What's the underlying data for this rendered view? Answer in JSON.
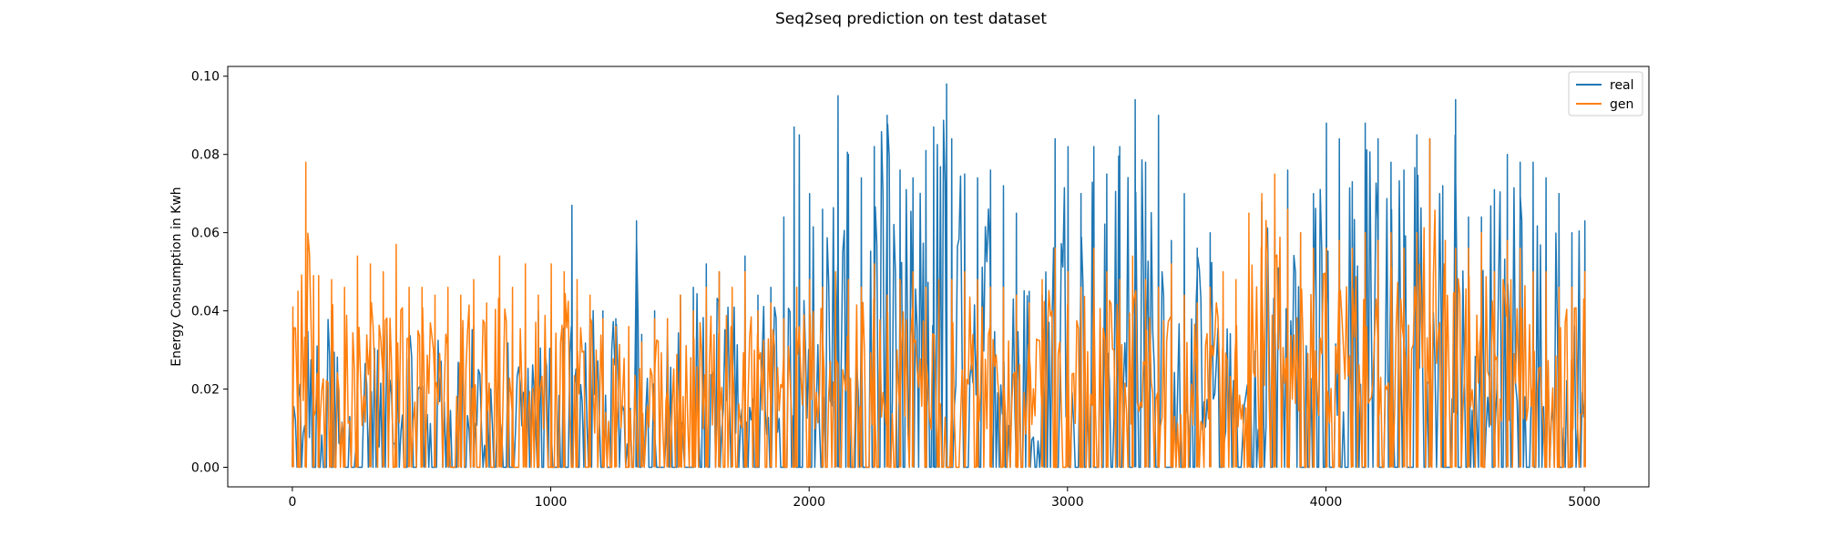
{
  "chart_data": {
    "type": "line",
    "title": "Seq2seq prediction on test dataset",
    "xlabel": "",
    "ylabel": "Energy Consumption in Kwh",
    "xlim": [
      -250,
      5250
    ],
    "ylim": [
      -0.005,
      0.1025
    ],
    "xticks": [
      0,
      1000,
      2000,
      3000,
      4000,
      5000
    ],
    "xtick_labels": [
      "0",
      "1000",
      "2000",
      "3000",
      "4000",
      "5000"
    ],
    "yticks": [
      0.0,
      0.02,
      0.04,
      0.06,
      0.08,
      0.1
    ],
    "ytick_labels": [
      "0.00",
      "0.02",
      "0.04",
      "0.06",
      "0.08",
      "0.10"
    ],
    "grid": false,
    "legend_position": "upper right",
    "series": [
      {
        "name": "real",
        "color": "#1f77b4",
        "x": [
          0,
          50,
          100,
          150,
          200,
          250,
          300,
          350,
          400,
          450,
          500,
          550,
          600,
          650,
          700,
          750,
          800,
          850,
          900,
          950,
          1000,
          1050,
          1080,
          1100,
          1150,
          1200,
          1250,
          1300,
          1330,
          1350,
          1400,
          1450,
          1500,
          1550,
          1600,
          1650,
          1700,
          1750,
          1800,
          1850,
          1900,
          1940,
          1960,
          2000,
          2050,
          2110,
          2150,
          2200,
          2250,
          2300,
          2350,
          2400,
          2450,
          2480,
          2530,
          2550,
          2600,
          2650,
          2700,
          2750,
          2800,
          2850,
          2900,
          2950,
          3000,
          3050,
          3100,
          3150,
          3200,
          3260,
          3300,
          3350,
          3400,
          3450,
          3500,
          3550,
          3600,
          3650,
          3700,
          3750,
          3800,
          3850,
          3900,
          3950,
          4000,
          4050,
          4100,
          4150,
          4200,
          4250,
          4300,
          4350,
          4400,
          4450,
          4500,
          4550,
          4600,
          4650,
          4700,
          4750,
          4800,
          4850,
          4900,
          4950,
          5000
        ],
        "y": [
          0.012,
          0.042,
          0.036,
          0.04,
          0.028,
          0.036,
          0.03,
          0.036,
          0.034,
          0.034,
          0.032,
          0.032,
          0.038,
          0.04,
          0.036,
          0.036,
          0.03,
          0.034,
          0.034,
          0.04,
          0.038,
          0.04,
          0.067,
          0.04,
          0.042,
          0.04,
          0.038,
          0.03,
          0.063,
          0.034,
          0.04,
          0.038,
          0.044,
          0.046,
          0.052,
          0.05,
          0.04,
          0.054,
          0.044,
          0.046,
          0.064,
          0.087,
          0.085,
          0.07,
          0.066,
          0.095,
          0.08,
          0.074,
          0.082,
          0.09,
          0.076,
          0.074,
          0.081,
          0.087,
          0.098,
          0.084,
          0.075,
          0.074,
          0.076,
          0.072,
          0.065,
          0.045,
          0.044,
          0.084,
          0.082,
          0.07,
          0.082,
          0.075,
          0.082,
          0.094,
          0.078,
          0.09,
          0.058,
          0.07,
          0.056,
          0.06,
          0.038,
          0.036,
          0.03,
          0.068,
          0.068,
          0.076,
          0.06,
          0.07,
          0.088,
          0.084,
          0.073,
          0.088,
          0.084,
          0.078,
          0.076,
          0.085,
          0.084,
          0.072,
          0.094,
          0.064,
          0.064,
          0.071,
          0.08,
          0.078,
          0.078,
          0.074,
          0.07,
          0.06,
          0.063
        ]
      },
      {
        "name": "gen",
        "color": "#ff7f0e",
        "x": [
          0,
          20,
          50,
          80,
          100,
          150,
          200,
          250,
          300,
          350,
          400,
          450,
          500,
          550,
          600,
          650,
          700,
          750,
          800,
          850,
          900,
          950,
          1000,
          1050,
          1100,
          1150,
          1200,
          1250,
          1300,
          1350,
          1400,
          1450,
          1500,
          1550,
          1600,
          1650,
          1700,
          1750,
          1800,
          1850,
          1900,
          1950,
          2000,
          2050,
          2100,
          2150,
          2200,
          2250,
          2300,
          2350,
          2400,
          2450,
          2500,
          2550,
          2600,
          2650,
          2700,
          2750,
          2800,
          2850,
          2900,
          2950,
          3000,
          3050,
          3100,
          3150,
          3200,
          3250,
          3300,
          3350,
          3400,
          3450,
          3500,
          3550,
          3600,
          3650,
          3700,
          3750,
          3800,
          3850,
          3900,
          3950,
          4000,
          4050,
          4100,
          4150,
          4200,
          4250,
          4300,
          4350,
          4400,
          4460,
          4500,
          4550,
          4600,
          4650,
          4700,
          4750,
          4800,
          4850,
          4900,
          4950,
          5000
        ],
        "y": [
          0.041,
          0.045,
          0.078,
          0.049,
          0.049,
          0.048,
          0.046,
          0.054,
          0.052,
          0.05,
          0.057,
          0.046,
          0.046,
          0.044,
          0.046,
          0.044,
          0.048,
          0.042,
          0.054,
          0.046,
          0.052,
          0.044,
          0.052,
          0.05,
          0.048,
          0.044,
          0.038,
          0.036,
          0.036,
          0.032,
          0.038,
          0.038,
          0.044,
          0.04,
          0.046,
          0.05,
          0.046,
          0.05,
          0.04,
          0.042,
          0.038,
          0.046,
          0.048,
          0.046,
          0.05,
          0.048,
          0.046,
          0.052,
          0.044,
          0.048,
          0.05,
          0.046,
          0.048,
          0.048,
          0.05,
          0.048,
          0.046,
          0.046,
          0.044,
          0.042,
          0.048,
          0.056,
          0.05,
          0.046,
          0.056,
          0.05,
          0.048,
          0.054,
          0.048,
          0.046,
          0.052,
          0.044,
          0.042,
          0.046,
          0.05,
          0.048,
          0.065,
          0.07,
          0.075,
          0.066,
          0.06,
          0.056,
          0.056,
          0.058,
          0.056,
          0.06,
          0.058,
          0.06,
          0.056,
          0.06,
          0.084,
          0.058,
          0.056,
          0.056,
          0.06,
          0.05,
          0.058,
          0.056,
          0.05,
          0.05,
          0.046,
          0.046,
          0.05
        ]
      }
    ]
  }
}
